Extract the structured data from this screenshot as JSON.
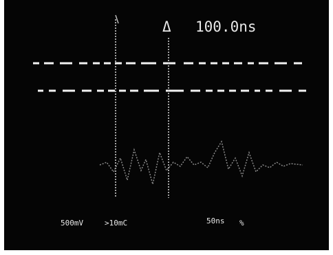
{
  "readout": {
    "delta_symbol": "Δ",
    "delta_time": "100.0ns",
    "volts_div": "500mV",
    "channel_info": ">10mC",
    "time_div": "50ns",
    "mode_symbol": "%"
  }
}
